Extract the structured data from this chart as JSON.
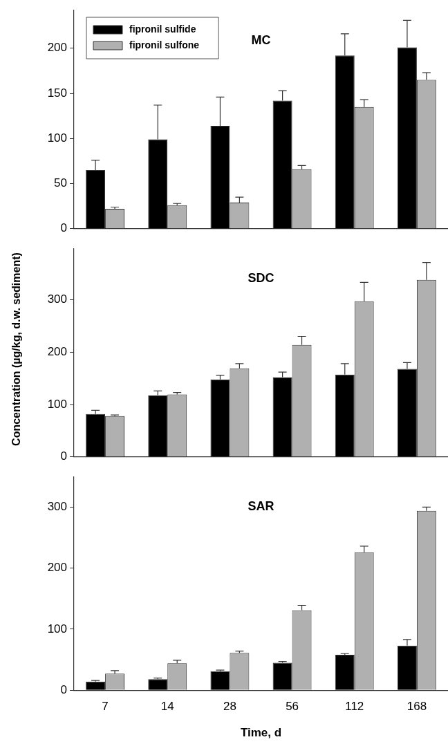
{
  "chart_data": [
    {
      "type": "bar",
      "title": "MC",
      "categories": [
        "7",
        "14",
        "28",
        "56",
        "112",
        "168"
      ],
      "ylim": [
        0,
        242
      ],
      "yticks": [
        0,
        50,
        100,
        150,
        200
      ],
      "tick_labels": "y",
      "legend": "top left",
      "series": [
        {
          "name": "fipronil sulfide",
          "color": "#000000",
          "values": [
            65,
            99,
            114,
            142,
            192,
            201
          ],
          "errors": [
            11,
            38,
            32,
            11,
            24,
            30
          ]
        },
        {
          "name": "fipronil sulfone",
          "color": "#b0b0b0",
          "values": [
            22,
            26,
            29,
            66,
            135,
            165
          ],
          "errors": [
            2,
            2,
            6,
            4,
            8,
            8
          ]
        }
      ]
    },
    {
      "type": "bar",
      "title": "SDC",
      "categories": [
        "7",
        "14",
        "28",
        "56",
        "112",
        "168"
      ],
      "ylim": [
        0,
        398
      ],
      "yticks": [
        0,
        100,
        200,
        300
      ],
      "tick_labels": "y",
      "ylabel": "Concentration (µg/kg, d.w. sediment)",
      "series": [
        {
          "color": "#000000",
          "values": [
            82,
            118,
            148,
            152,
            157,
            168
          ],
          "errors": [
            7,
            8,
            8,
            10,
            21,
            12
          ]
        },
        {
          "color": "#b0b0b0",
          "values": [
            78,
            119,
            169,
            214,
            297,
            338
          ],
          "errors": [
            2,
            4,
            9,
            16,
            36,
            33
          ]
        }
      ]
    },
    {
      "type": "bar",
      "title": "SAR",
      "categories": [
        "7",
        "14",
        "28",
        "56",
        "112",
        "168"
      ],
      "ylim": [
        0,
        350
      ],
      "yticks": [
        0,
        100,
        200,
        300
      ],
      "xlabel": "Time, d",
      "series": [
        {
          "color": "#000000",
          "values": [
            14,
            18,
            31,
            45,
            58,
            73
          ],
          "errors": [
            2,
            2,
            2,
            2,
            2,
            10
          ]
        },
        {
          "color": "#b0b0b0",
          "values": [
            27,
            44,
            61,
            131,
            226,
            294
          ],
          "errors": [
            5,
            5,
            3,
            8,
            10,
            6
          ]
        }
      ]
    }
  ]
}
